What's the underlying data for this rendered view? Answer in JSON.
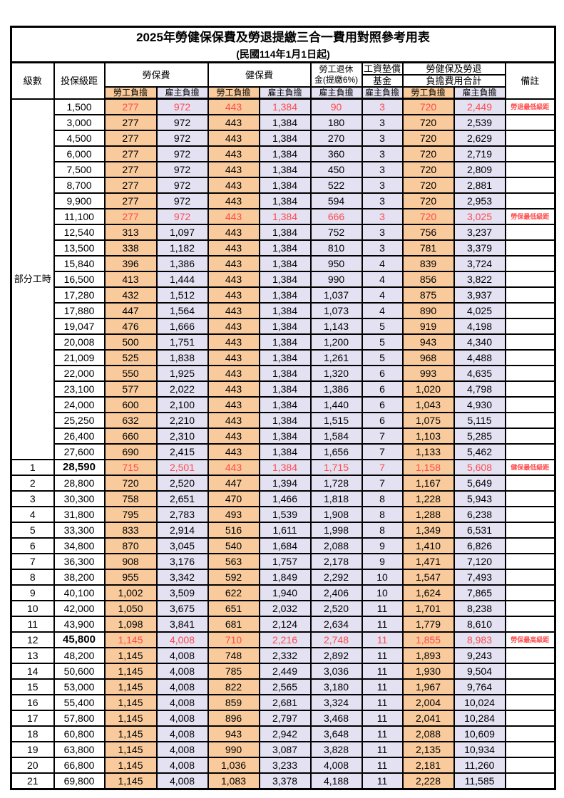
{
  "title": "2025年勞健保保費及勞退提繳三合一費用對照參考用表",
  "subtitle": "(民國114年1月1日起)",
  "header": {
    "level": "級數",
    "bracket": "投保級距",
    "labor_insurance": "勞保費",
    "health_insurance": "健保費",
    "pension_line1": "勞工退休",
    "pension_line2": "金(提繳6%)",
    "wage_fund_line1": "工資墊償",
    "wage_fund_line2": "基金",
    "total_line1": "勞健保及勞退",
    "total_line2": "負擔費用合計",
    "remark": "備註",
    "employee": "勞工負擔",
    "employer": "雇主負擔"
  },
  "colors": {
    "employee_col_bg": "#F9CB9C",
    "employer_col_bg": "#E3E1F2",
    "highlight_text": "#FF4A4A",
    "border": "#000000"
  },
  "part_time": {
    "label": "部分工時",
    "rows": [
      {
        "bracket": "1,500",
        "li_emp": "277",
        "li_er": "972",
        "hi_emp": "443",
        "hi_er": "1,384",
        "pension": "90",
        "wage": "3",
        "tot_emp": "720",
        "tot_er": "2,449",
        "remark": "勞退最低級距",
        "highlight": true,
        "bracket_bold": false
      },
      {
        "bracket": "3,000",
        "li_emp": "277",
        "li_er": "972",
        "hi_emp": "443",
        "hi_er": "1,384",
        "pension": "180",
        "wage": "3",
        "tot_emp": "720",
        "tot_er": "2,539",
        "remark": "",
        "highlight": false,
        "bracket_bold": false
      },
      {
        "bracket": "4,500",
        "li_emp": "277",
        "li_er": "972",
        "hi_emp": "443",
        "hi_er": "1,384",
        "pension": "270",
        "wage": "3",
        "tot_emp": "720",
        "tot_er": "2,629",
        "remark": "",
        "highlight": false,
        "bracket_bold": false
      },
      {
        "bracket": "6,000",
        "li_emp": "277",
        "li_er": "972",
        "hi_emp": "443",
        "hi_er": "1,384",
        "pension": "360",
        "wage": "3",
        "tot_emp": "720",
        "tot_er": "2,719",
        "remark": "",
        "highlight": false,
        "bracket_bold": false
      },
      {
        "bracket": "7,500",
        "li_emp": "277",
        "li_er": "972",
        "hi_emp": "443",
        "hi_er": "1,384",
        "pension": "450",
        "wage": "3",
        "tot_emp": "720",
        "tot_er": "2,809",
        "remark": "",
        "highlight": false,
        "bracket_bold": false
      },
      {
        "bracket": "8,700",
        "li_emp": "277",
        "li_er": "972",
        "hi_emp": "443",
        "hi_er": "1,384",
        "pension": "522",
        "wage": "3",
        "tot_emp": "720",
        "tot_er": "2,881",
        "remark": "",
        "highlight": false,
        "bracket_bold": false
      },
      {
        "bracket": "9,900",
        "li_emp": "277",
        "li_er": "972",
        "hi_emp": "443",
        "hi_er": "1,384",
        "pension": "594",
        "wage": "3",
        "tot_emp": "720",
        "tot_er": "2,953",
        "remark": "",
        "highlight": false,
        "bracket_bold": false
      },
      {
        "bracket": "11,100",
        "li_emp": "277",
        "li_er": "972",
        "hi_emp": "443",
        "hi_er": "1,384",
        "pension": "666",
        "wage": "3",
        "tot_emp": "720",
        "tot_er": "3,025",
        "remark": "勞保最低級距",
        "highlight": true,
        "bracket_bold": false
      },
      {
        "bracket": "12,540",
        "li_emp": "313",
        "li_er": "1,097",
        "hi_emp": "443",
        "hi_er": "1,384",
        "pension": "752",
        "wage": "3",
        "tot_emp": "756",
        "tot_er": "3,237",
        "remark": "",
        "highlight": false,
        "bracket_bold": false
      },
      {
        "bracket": "13,500",
        "li_emp": "338",
        "li_er": "1,182",
        "hi_emp": "443",
        "hi_er": "1,384",
        "pension": "810",
        "wage": "3",
        "tot_emp": "781",
        "tot_er": "3,379",
        "remark": "",
        "highlight": false,
        "bracket_bold": false
      },
      {
        "bracket": "15,840",
        "li_emp": "396",
        "li_er": "1,386",
        "hi_emp": "443",
        "hi_er": "1,384",
        "pension": "950",
        "wage": "4",
        "tot_emp": "839",
        "tot_er": "3,724",
        "remark": "",
        "highlight": false,
        "bracket_bold": false
      },
      {
        "bracket": "16,500",
        "li_emp": "413",
        "li_er": "1,444",
        "hi_emp": "443",
        "hi_er": "1,384",
        "pension": "990",
        "wage": "4",
        "tot_emp": "856",
        "tot_er": "3,822",
        "remark": "",
        "highlight": false,
        "bracket_bold": false
      },
      {
        "bracket": "17,280",
        "li_emp": "432",
        "li_er": "1,512",
        "hi_emp": "443",
        "hi_er": "1,384",
        "pension": "1,037",
        "wage": "4",
        "tot_emp": "875",
        "tot_er": "3,937",
        "remark": "",
        "highlight": false,
        "bracket_bold": false
      },
      {
        "bracket": "17,880",
        "li_emp": "447",
        "li_er": "1,564",
        "hi_emp": "443",
        "hi_er": "1,384",
        "pension": "1,073",
        "wage": "4",
        "tot_emp": "890",
        "tot_er": "4,025",
        "remark": "",
        "highlight": false,
        "bracket_bold": false
      },
      {
        "bracket": "19,047",
        "li_emp": "476",
        "li_er": "1,666",
        "hi_emp": "443",
        "hi_er": "1,384",
        "pension": "1,143",
        "wage": "5",
        "tot_emp": "919",
        "tot_er": "4,198",
        "remark": "",
        "highlight": false,
        "bracket_bold": false
      },
      {
        "bracket": "20,008",
        "li_emp": "500",
        "li_er": "1,751",
        "hi_emp": "443",
        "hi_er": "1,384",
        "pension": "1,200",
        "wage": "5",
        "tot_emp": "943",
        "tot_er": "4,340",
        "remark": "",
        "highlight": false,
        "bracket_bold": false
      },
      {
        "bracket": "21,009",
        "li_emp": "525",
        "li_er": "1,838",
        "hi_emp": "443",
        "hi_er": "1,384",
        "pension": "1,261",
        "wage": "5",
        "tot_emp": "968",
        "tot_er": "4,488",
        "remark": "",
        "highlight": false,
        "bracket_bold": false
      },
      {
        "bracket": "22,000",
        "li_emp": "550",
        "li_er": "1,925",
        "hi_emp": "443",
        "hi_er": "1,384",
        "pension": "1,320",
        "wage": "6",
        "tot_emp": "993",
        "tot_er": "4,635",
        "remark": "",
        "highlight": false,
        "bracket_bold": false
      },
      {
        "bracket": "23,100",
        "li_emp": "577",
        "li_er": "2,022",
        "hi_emp": "443",
        "hi_er": "1,384",
        "pension": "1,386",
        "wage": "6",
        "tot_emp": "1,020",
        "tot_er": "4,798",
        "remark": "",
        "highlight": false,
        "bracket_bold": false
      },
      {
        "bracket": "24,000",
        "li_emp": "600",
        "li_er": "2,100",
        "hi_emp": "443",
        "hi_er": "1,384",
        "pension": "1,440",
        "wage": "6",
        "tot_emp": "1,043",
        "tot_er": "4,930",
        "remark": "",
        "highlight": false,
        "bracket_bold": false
      },
      {
        "bracket": "25,250",
        "li_emp": "632",
        "li_er": "2,210",
        "hi_emp": "443",
        "hi_er": "1,384",
        "pension": "1,515",
        "wage": "6",
        "tot_emp": "1,075",
        "tot_er": "5,115",
        "remark": "",
        "highlight": false,
        "bracket_bold": false
      },
      {
        "bracket": "26,400",
        "li_emp": "660",
        "li_er": "2,310",
        "hi_emp": "443",
        "hi_er": "1,384",
        "pension": "1,584",
        "wage": "7",
        "tot_emp": "1,103",
        "tot_er": "5,285",
        "remark": "",
        "highlight": false,
        "bracket_bold": false
      },
      {
        "bracket": "27,600",
        "li_emp": "690",
        "li_er": "2,415",
        "hi_emp": "443",
        "hi_er": "1,384",
        "pension": "1,656",
        "wage": "7",
        "tot_emp": "1,133",
        "tot_er": "5,462",
        "remark": "",
        "highlight": false,
        "bracket_bold": false
      }
    ]
  },
  "levels": {
    "rows": [
      {
        "level": "1",
        "bracket": "28,590",
        "li_emp": "715",
        "li_er": "2,501",
        "hi_emp": "443",
        "hi_er": "1,384",
        "pension": "1,715",
        "wage": "7",
        "tot_emp": "1,158",
        "tot_er": "5,608",
        "remark": "健保最低級距",
        "highlight": true,
        "bracket_bold": true
      },
      {
        "level": "2",
        "bracket": "28,800",
        "li_emp": "720",
        "li_er": "2,520",
        "hi_emp": "447",
        "hi_er": "1,394",
        "pension": "1,728",
        "wage": "7",
        "tot_emp": "1,167",
        "tot_er": "5,649",
        "remark": "",
        "highlight": false,
        "bracket_bold": false
      },
      {
        "level": "3",
        "bracket": "30,300",
        "li_emp": "758",
        "li_er": "2,651",
        "hi_emp": "470",
        "hi_er": "1,466",
        "pension": "1,818",
        "wage": "8",
        "tot_emp": "1,228",
        "tot_er": "5,943",
        "remark": "",
        "highlight": false,
        "bracket_bold": false
      },
      {
        "level": "4",
        "bracket": "31,800",
        "li_emp": "795",
        "li_er": "2,783",
        "hi_emp": "493",
        "hi_er": "1,539",
        "pension": "1,908",
        "wage": "8",
        "tot_emp": "1,288",
        "tot_er": "6,238",
        "remark": "",
        "highlight": false,
        "bracket_bold": false
      },
      {
        "level": "5",
        "bracket": "33,300",
        "li_emp": "833",
        "li_er": "2,914",
        "hi_emp": "516",
        "hi_er": "1,611",
        "pension": "1,998",
        "wage": "8",
        "tot_emp": "1,349",
        "tot_er": "6,531",
        "remark": "",
        "highlight": false,
        "bracket_bold": false
      },
      {
        "level": "6",
        "bracket": "34,800",
        "li_emp": "870",
        "li_er": "3,045",
        "hi_emp": "540",
        "hi_er": "1,684",
        "pension": "2,088",
        "wage": "9",
        "tot_emp": "1,410",
        "tot_er": "6,826",
        "remark": "",
        "highlight": false,
        "bracket_bold": false
      },
      {
        "level": "7",
        "bracket": "36,300",
        "li_emp": "908",
        "li_er": "3,176",
        "hi_emp": "563",
        "hi_er": "1,757",
        "pension": "2,178",
        "wage": "9",
        "tot_emp": "1,471",
        "tot_er": "7,120",
        "remark": "",
        "highlight": false,
        "bracket_bold": false
      },
      {
        "level": "8",
        "bracket": "38,200",
        "li_emp": "955",
        "li_er": "3,342",
        "hi_emp": "592",
        "hi_er": "1,849",
        "pension": "2,292",
        "wage": "10",
        "tot_emp": "1,547",
        "tot_er": "7,493",
        "remark": "",
        "highlight": false,
        "bracket_bold": false
      },
      {
        "level": "9",
        "bracket": "40,100",
        "li_emp": "1,002",
        "li_er": "3,509",
        "hi_emp": "622",
        "hi_er": "1,940",
        "pension": "2,406",
        "wage": "10",
        "tot_emp": "1,624",
        "tot_er": "7,865",
        "remark": "",
        "highlight": false,
        "bracket_bold": false
      },
      {
        "level": "10",
        "bracket": "42,000",
        "li_emp": "1,050",
        "li_er": "3,675",
        "hi_emp": "651",
        "hi_er": "2,032",
        "pension": "2,520",
        "wage": "11",
        "tot_emp": "1,701",
        "tot_er": "8,238",
        "remark": "",
        "highlight": false,
        "bracket_bold": false
      },
      {
        "level": "11",
        "bracket": "43,900",
        "li_emp": "1,098",
        "li_er": "3,841",
        "hi_emp": "681",
        "hi_er": "2,124",
        "pension": "2,634",
        "wage": "11",
        "tot_emp": "1,779",
        "tot_er": "8,610",
        "remark": "",
        "highlight": false,
        "bracket_bold": false
      },
      {
        "level": "12",
        "bracket": "45,800",
        "li_emp": "1,145",
        "li_er": "4,008",
        "hi_emp": "710",
        "hi_er": "2,216",
        "pension": "2,748",
        "wage": "11",
        "tot_emp": "1,855",
        "tot_er": "8,983",
        "remark": "勞保最高級距",
        "highlight": true,
        "bracket_bold": true
      },
      {
        "level": "13",
        "bracket": "48,200",
        "li_emp": "1,145",
        "li_er": "4,008",
        "hi_emp": "748",
        "hi_er": "2,332",
        "pension": "2,892",
        "wage": "11",
        "tot_emp": "1,893",
        "tot_er": "9,243",
        "remark": "",
        "highlight": false,
        "bracket_bold": false
      },
      {
        "level": "14",
        "bracket": "50,600",
        "li_emp": "1,145",
        "li_er": "4,008",
        "hi_emp": "785",
        "hi_er": "2,449",
        "pension": "3,036",
        "wage": "11",
        "tot_emp": "1,930",
        "tot_er": "9,504",
        "remark": "",
        "highlight": false,
        "bracket_bold": false
      },
      {
        "level": "15",
        "bracket": "53,000",
        "li_emp": "1,145",
        "li_er": "4,008",
        "hi_emp": "822",
        "hi_er": "2,565",
        "pension": "3,180",
        "wage": "11",
        "tot_emp": "1,967",
        "tot_er": "9,764",
        "remark": "",
        "highlight": false,
        "bracket_bold": false
      },
      {
        "level": "16",
        "bracket": "55,400",
        "li_emp": "1,145",
        "li_er": "4,008",
        "hi_emp": "859",
        "hi_er": "2,681",
        "pension": "3,324",
        "wage": "11",
        "tot_emp": "2,004",
        "tot_er": "10,024",
        "remark": "",
        "highlight": false,
        "bracket_bold": false
      },
      {
        "level": "17",
        "bracket": "57,800",
        "li_emp": "1,145",
        "li_er": "4,008",
        "hi_emp": "896",
        "hi_er": "2,797",
        "pension": "3,468",
        "wage": "11",
        "tot_emp": "2,041",
        "tot_er": "10,284",
        "remark": "",
        "highlight": false,
        "bracket_bold": false
      },
      {
        "level": "18",
        "bracket": "60,800",
        "li_emp": "1,145",
        "li_er": "4,008",
        "hi_emp": "943",
        "hi_er": "2,942",
        "pension": "3,648",
        "wage": "11",
        "tot_emp": "2,088",
        "tot_er": "10,609",
        "remark": "",
        "highlight": false,
        "bracket_bold": false
      },
      {
        "level": "19",
        "bracket": "63,800",
        "li_emp": "1,145",
        "li_er": "4,008",
        "hi_emp": "990",
        "hi_er": "3,087",
        "pension": "3,828",
        "wage": "11",
        "tot_emp": "2,135",
        "tot_er": "10,934",
        "remark": "",
        "highlight": false,
        "bracket_bold": false
      },
      {
        "level": "20",
        "bracket": "66,800",
        "li_emp": "1,145",
        "li_er": "4,008",
        "hi_emp": "1,036",
        "hi_er": "3,233",
        "pension": "4,008",
        "wage": "11",
        "tot_emp": "2,181",
        "tot_er": "11,260",
        "remark": "",
        "highlight": false,
        "bracket_bold": false
      },
      {
        "level": "21",
        "bracket": "69,800",
        "li_emp": "1,145",
        "li_er": "4,008",
        "hi_emp": "1,083",
        "hi_er": "3,378",
        "pension": "4,188",
        "wage": "11",
        "tot_emp": "2,228",
        "tot_er": "11,585",
        "remark": "",
        "highlight": false,
        "bracket_bold": false
      }
    ]
  }
}
